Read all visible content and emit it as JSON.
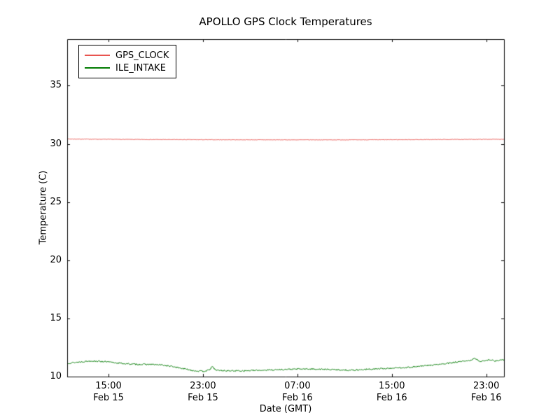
{
  "figure": {
    "background": "#ffffff"
  },
  "chart_data": {
    "type": "line",
    "title": "APOLLO GPS Clock Temperatures",
    "xlabel": "Date (GMT)",
    "ylabel": "Temperature (C)",
    "xlim": [
      0,
      37
    ],
    "ylim": [
      10,
      39
    ],
    "yticks": [
      10,
      15,
      20,
      25,
      30,
      35
    ],
    "xticks": [
      {
        "pos": 3.5,
        "time": "15:00",
        "date": "Feb 15"
      },
      {
        "pos": 11.5,
        "time": "23:00",
        "date": "Feb 15"
      },
      {
        "pos": 19.5,
        "time": "07:00",
        "date": "Feb 16"
      },
      {
        "pos": 27.5,
        "time": "15:00",
        "date": "Feb 16"
      },
      {
        "pos": 35.5,
        "time": "23:00",
        "date": "Feb 16"
      }
    ],
    "grid": false,
    "legend": {
      "position": "upper-left",
      "entries": [
        "GPS_CLOCK",
        "ILE_INTAKE"
      ]
    },
    "series": [
      {
        "name": "GPS_CLOCK",
        "color": "#e8544f",
        "noise": 0.018,
        "seed": 7,
        "keypoints": [
          [
            0,
            30.42
          ],
          [
            6,
            30.38
          ],
          [
            12,
            30.36
          ],
          [
            18,
            30.35
          ],
          [
            24,
            30.35
          ],
          [
            30,
            30.37
          ],
          [
            37,
            30.4
          ]
        ]
      },
      {
        "name": "ILE_INTAKE",
        "color": "#007a00",
        "noise": 0.06,
        "seed": 13,
        "keypoints": [
          [
            0,
            11.15
          ],
          [
            1,
            11.25
          ],
          [
            2,
            11.35
          ],
          [
            3,
            11.3
          ],
          [
            4,
            11.2
          ],
          [
            5,
            11.1
          ],
          [
            6,
            11.05
          ],
          [
            7,
            11.05
          ],
          [
            8,
            11.0
          ],
          [
            9,
            10.85
          ],
          [
            10,
            10.65
          ],
          [
            10.8,
            10.5
          ],
          [
            11.5,
            10.45
          ],
          [
            12,
            10.55
          ],
          [
            12.3,
            10.85
          ],
          [
            12.6,
            10.55
          ],
          [
            13.5,
            10.5
          ],
          [
            15,
            10.5
          ],
          [
            16.5,
            10.55
          ],
          [
            18,
            10.6
          ],
          [
            19.5,
            10.65
          ],
          [
            21,
            10.65
          ],
          [
            22.5,
            10.6
          ],
          [
            24,
            10.55
          ],
          [
            25,
            10.6
          ],
          [
            26,
            10.65
          ],
          [
            27,
            10.7
          ],
          [
            28,
            10.75
          ],
          [
            29,
            10.8
          ],
          [
            30,
            10.9
          ],
          [
            31,
            11.0
          ],
          [
            32,
            11.1
          ],
          [
            33,
            11.25
          ],
          [
            34,
            11.35
          ],
          [
            34.5,
            11.55
          ],
          [
            35,
            11.3
          ],
          [
            35.7,
            11.45
          ],
          [
            36.3,
            11.35
          ],
          [
            37,
            11.45
          ]
        ]
      }
    ]
  }
}
